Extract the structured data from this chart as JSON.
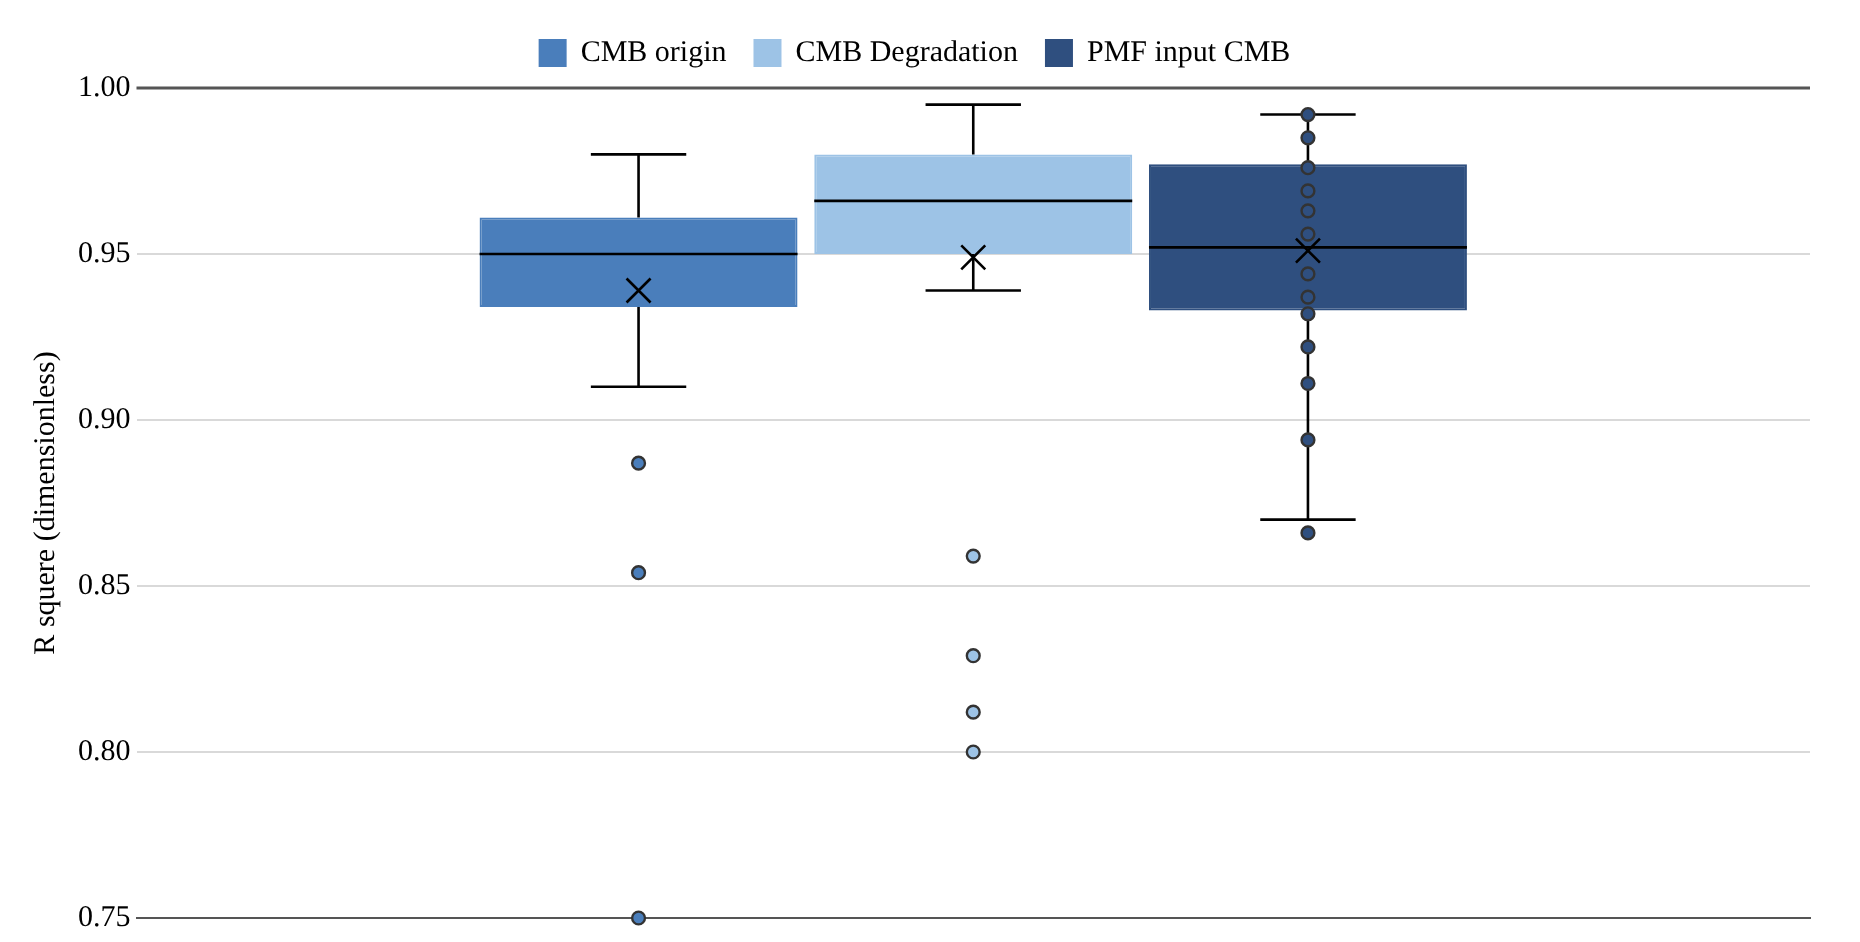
{
  "chart_data": {
    "type": "box",
    "ylabel": "R squere (dimensionless)",
    "categories": [
      null
    ],
    "series": [
      {
        "name": "CMB origin",
        "color": "#4a7ebb",
        "boxes": [
          {
            "low": 0.91,
            "q1": 0.934,
            "median": 0.95,
            "q3": 0.961,
            "high": 0.98,
            "mean": 0.939,
            "outliers": [
              0.887,
              0.854,
              0.75
            ]
          }
        ]
      },
      {
        "name": "CMB Degradation",
        "color": "#9dc3e6",
        "boxes": [
          {
            "low": 0.939,
            "q1": 0.95,
            "median": 0.966,
            "q3": 0.98,
            "high": 0.995,
            "mean": 0.949,
            "outliers": [
              0.859,
              0.829,
              0.812,
              0.8
            ]
          }
        ]
      },
      {
        "name": "PMF input CMB",
        "color": "#2f4f7f",
        "boxes": [
          {
            "low": 0.87,
            "q1": 0.933,
            "median": 0.952,
            "q3": 0.977,
            "high": 0.992,
            "mean": 0.951,
            "outliers": [
              0.992,
              0.985,
              0.976,
              0.969,
              0.963,
              0.956,
              0.944,
              0.937,
              0.932,
              0.922,
              0.911,
              0.894,
              0.866
            ]
          }
        ]
      }
    ],
    "ylim": [
      0.75,
      1.0
    ],
    "yticks": [
      {
        "value": 0.75,
        "label": "0.75"
      },
      {
        "value": 0.8,
        "label": "0.80"
      },
      {
        "value": 0.85,
        "label": "0.85"
      },
      {
        "value": 0.9,
        "label": "0.90"
      },
      {
        "value": 0.95,
        "label": "0.95"
      },
      {
        "value": 1.0,
        "label": "1.00"
      }
    ],
    "tick_labels": "y",
    "grid": "y",
    "legend": "top",
    "marker": "circle"
  }
}
